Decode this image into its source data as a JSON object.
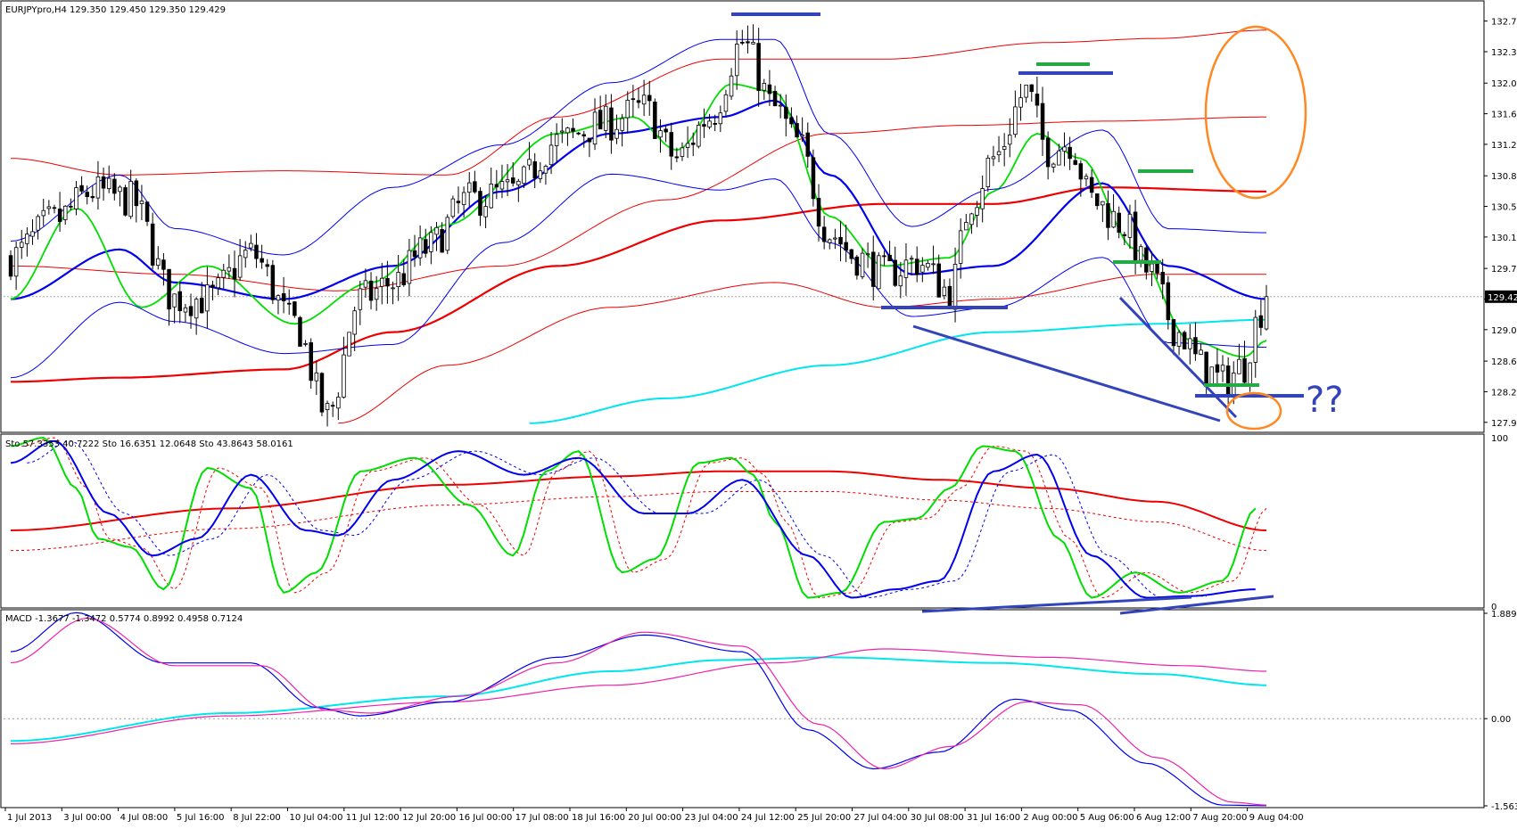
{
  "window": {
    "header_price": "EURJPYpro,H4  129.350 129.450 129.350 129.429",
    "header_sto": "Sto 57.3353 40.7222   Sto 16.6351 12.0648   Sto 43.8643 58.0161",
    "header_macd": "MACD -1.3677 -1.3472 0.5774 0.8992 0.4958 0.7124",
    "current_price_label": "129.429",
    "annotation_text": "??"
  },
  "colors": {
    "background": "#ffffff",
    "grid": "#c0c0c0",
    "bull_candle": "#ffffff",
    "bear_candle": "#000000",
    "green_line": "#00dd00",
    "blue_line": "#0000ee",
    "red_line": "#ee0000",
    "cyan_line": "#00e5ee",
    "magenta_line": "#ee22aa",
    "annotation_blue": "#3344bb",
    "annotation_green": "#22aa44",
    "annotation_orange": "#ff8822"
  },
  "chart_data": [
    {
      "type": "candlestick",
      "symbol": "EURJPYpro",
      "timeframe": "H4",
      "ylim": [
        127.8,
        132.95
      ],
      "y_ticks": [
        "132.760",
        "132.390",
        "132.010",
        "131.640",
        "131.270",
        "130.890",
        "130.520",
        "130.150",
        "129.770",
        "129.400",
        "129.030",
        "128.650",
        "128.280",
        "127.910"
      ],
      "x_ticks": [
        "1 Jul 2013",
        "3 Jul 00:00",
        "4 Jul 08:00",
        "5 Jul 16:00",
        "8 Jul 22:00",
        "10 Jul 04:00",
        "11 Jul 12:00",
        "12 Jul 20:00",
        "16 Jul 00:00",
        "17 Jul 08:00",
        "18 Jul 16:00",
        "20 Jul 00:00",
        "23 Jul 04:00",
        "24 Jul 12:00",
        "25 Jul 20:00",
        "27 Jul 04:00",
        "30 Jul 08:00",
        "31 Jul 16:00",
        "2 Aug 00:00",
        "5 Aug 06:00",
        "6 Aug 12:00",
        "7 Aug 20:00",
        "9 Aug 04:00"
      ],
      "current_price": 129.429,
      "close_path": [
        [
          0,
          129.9
        ],
        [
          8,
          130.35
        ],
        [
          15,
          130.7
        ],
        [
          22,
          130.6
        ],
        [
          30,
          129.4
        ],
        [
          36,
          129.4
        ],
        [
          44,
          129.95
        ],
        [
          52,
          129.1
        ],
        [
          58,
          128.0
        ],
        [
          64,
          129.4
        ],
        [
          70,
          129.6
        ],
        [
          76,
          130.0
        ],
        [
          84,
          130.6
        ],
        [
          92,
          130.7
        ],
        [
          100,
          131.3
        ],
        [
          108,
          131.5
        ],
        [
          116,
          131.7
        ],
        [
          122,
          131.1
        ],
        [
          128,
          131.6
        ],
        [
          134,
          132.5
        ],
        [
          140,
          131.7
        ],
        [
          144,
          131.3
        ],
        [
          150,
          130.2
        ],
        [
          155,
          129.9
        ],
        [
          160,
          129.7
        ],
        [
          166,
          129.85
        ],
        [
          172,
          129.5
        ],
        [
          176,
          130.6
        ],
        [
          180,
          131.1
        ],
        [
          186,
          131.9
        ],
        [
          190,
          131.2
        ],
        [
          194,
          131.3
        ],
        [
          198,
          130.6
        ],
        [
          204,
          130.3
        ],
        [
          208,
          129.75
        ],
        [
          214,
          129.0
        ],
        [
          218,
          128.6
        ],
        [
          222,
          128.4
        ],
        [
          226,
          128.6
        ],
        [
          228,
          129.1
        ],
        [
          230,
          129.429
        ]
      ],
      "series": [
        {
          "name": "Bollinger upper (red)",
          "values": [
            [
              0,
              131.1
            ],
            [
              20,
              130.9
            ],
            [
              50,
              130.95
            ],
            [
              80,
              130.9
            ],
            [
              100,
              131.6
            ],
            [
              130,
              132.3
            ],
            [
              160,
              132.3
            ],
            [
              190,
              132.5
            ],
            [
              210,
              132.55
            ],
            [
              230,
              132.65
            ]
          ]
        },
        {
          "name": "Bollinger middle (red)",
          "values": [
            [
              0,
              129.8
            ],
            [
              30,
              129.7
            ],
            [
              60,
              129.5
            ],
            [
              90,
              129.8
            ],
            [
              120,
              130.6
            ],
            [
              150,
              131.4
            ],
            [
              175,
              131.5
            ],
            [
              200,
              131.55
            ],
            [
              230,
              131.6
            ]
          ]
        },
        {
          "name": "Bollinger lower (red)",
          "values": [
            [
              60,
              127.9
            ],
            [
              80,
              128.6
            ],
            [
              110,
              129.3
            ],
            [
              140,
              129.6
            ],
            [
              160,
              129.3
            ],
            [
              180,
              129.4
            ],
            [
              210,
              129.7
            ],
            [
              230,
              129.7
            ]
          ]
        },
        {
          "name": "MA thick (red)",
          "values": [
            [
              0,
              128.4
            ],
            [
              20,
              128.45
            ],
            [
              50,
              128.55
            ],
            [
              70,
              129.0
            ],
            [
              100,
              129.8
            ],
            [
              130,
              130.35
            ],
            [
              160,
              130.55
            ],
            [
              180,
              130.55
            ],
            [
              200,
              130.75
            ],
            [
              230,
              130.7
            ]
          ]
        },
        {
          "name": "MA thick (blue)",
          "values": [
            [
              0,
              129.4
            ],
            [
              20,
              130.0
            ],
            [
              30,
              129.6
            ],
            [
              50,
              129.4
            ],
            [
              70,
              129.8
            ],
            [
              90,
              130.7
            ],
            [
              110,
              131.4
            ],
            [
              130,
              131.6
            ],
            [
              140,
              131.8
            ],
            [
              150,
              130.9
            ],
            [
              165,
              129.7
            ],
            [
              180,
              129.8
            ],
            [
              200,
              130.8
            ],
            [
              212,
              129.8
            ],
            [
              230,
              129.4
            ]
          ]
        },
        {
          "name": "MA (green)",
          "values": [
            [
              0,
              129.4
            ],
            [
              12,
              130.5
            ],
            [
              24,
              129.3
            ],
            [
              36,
              129.8
            ],
            [
              52,
              129.1
            ],
            [
              66,
              129.6
            ],
            [
              80,
              130.3
            ],
            [
              100,
              131.4
            ],
            [
              114,
              131.6
            ],
            [
              122,
              131.2
            ],
            [
              132,
              132.0
            ],
            [
              140,
              131.9
            ],
            [
              150,
              130.4
            ],
            [
              160,
              129.8
            ],
            [
              172,
              129.9
            ],
            [
              180,
              130.7
            ],
            [
              188,
              131.4
            ],
            [
              196,
              131.1
            ],
            [
              206,
              130.0
            ],
            [
              216,
              128.9
            ],
            [
              226,
              128.7
            ],
            [
              230,
              128.9
            ]
          ]
        },
        {
          "name": "MA (cyan)",
          "values": [
            [
              95,
              127.9
            ],
            [
              120,
              128.2
            ],
            [
              150,
              128.6
            ],
            [
              180,
              129.0
            ],
            [
              210,
              129.1
            ],
            [
              230,
              129.15
            ]
          ]
        }
      ]
    },
    {
      "type": "line",
      "name": "Stochastic",
      "ylim": [
        0,
        100
      ],
      "y_ticks": [
        "100",
        "0"
      ],
      "series": [
        {
          "name": "Sto fast (green)",
          "values": [
            [
              0,
              95
            ],
            [
              6,
              100
            ],
            [
              12,
              70
            ],
            [
              16,
              40
            ],
            [
              22,
              35
            ],
            [
              28,
              10
            ],
            [
              36,
              82
            ],
            [
              44,
              70
            ],
            [
              50,
              8
            ],
            [
              56,
              20
            ],
            [
              64,
              80
            ],
            [
              74,
              88
            ],
            [
              84,
              60
            ],
            [
              92,
              30
            ],
            [
              98,
              80
            ],
            [
              104,
              92
            ],
            [
              112,
              20
            ],
            [
              118,
              28
            ],
            [
              126,
              85
            ],
            [
              132,
              88
            ],
            [
              136,
              78
            ],
            [
              140,
              50
            ],
            [
              146,
              5
            ],
            [
              152,
              8
            ],
            [
              160,
              50
            ],
            [
              166,
              52
            ],
            [
              172,
              70
            ],
            [
              178,
              95
            ],
            [
              184,
              92
            ],
            [
              192,
              40
            ],
            [
              198,
              5
            ],
            [
              206,
              20
            ],
            [
              214,
              8
            ],
            [
              222,
              15
            ],
            [
              228,
              58
            ]
          ]
        },
        {
          "name": "Sto slow (blue)",
          "values": [
            [
              0,
              85
            ],
            [
              8,
              98
            ],
            [
              18,
              55
            ],
            [
              26,
              30
            ],
            [
              34,
              40
            ],
            [
              44,
              78
            ],
            [
              54,
              45
            ],
            [
              60,
              42
            ],
            [
              70,
              75
            ],
            [
              82,
              92
            ],
            [
              94,
              78
            ],
            [
              104,
              88
            ],
            [
              116,
              55
            ],
            [
              124,
              55
            ],
            [
              134,
              75
            ],
            [
              146,
              30
            ],
            [
              154,
              5
            ],
            [
              162,
              10
            ],
            [
              170,
              15
            ],
            [
              180,
              80
            ],
            [
              188,
              90
            ],
            [
              198,
              30
            ],
            [
              208,
              5
            ],
            [
              216,
              6
            ],
            [
              228,
              10
            ]
          ]
        },
        {
          "name": "Sto long (red)",
          "values": [
            [
              0,
              45
            ],
            [
              40,
              58
            ],
            [
              80,
              72
            ],
            [
              110,
              77
            ],
            [
              130,
              80
            ],
            [
              150,
              80
            ],
            [
              170,
              75
            ],
            [
              190,
              70
            ],
            [
              210,
              62
            ],
            [
              230,
              45
            ]
          ]
        }
      ]
    },
    {
      "type": "line",
      "name": "MACD",
      "ylim": [
        -1.5633,
        1.8897
      ],
      "y_ticks": [
        "1.8897",
        "0.00",
        "-1.5633"
      ],
      "series": [
        {
          "name": "MACD (blue)",
          "values": [
            [
              0,
              1.2
            ],
            [
              12,
              1.9
            ],
            [
              28,
              1.0
            ],
            [
              44,
              1.0
            ],
            [
              56,
              0.2
            ],
            [
              64,
              0.05
            ],
            [
              80,
              0.3
            ],
            [
              100,
              1.1
            ],
            [
              116,
              1.5
            ],
            [
              134,
              1.2
            ],
            [
              146,
              -0.2
            ],
            [
              158,
              -0.9
            ],
            [
              170,
              -0.6
            ],
            [
              184,
              0.35
            ],
            [
              194,
              0.15
            ],
            [
              208,
              -0.8
            ],
            [
              222,
              -1.55
            ],
            [
              230,
              -1.56
            ]
          ]
        },
        {
          "name": "Signal (magenta)",
          "values": [
            [
              0,
              1.0
            ],
            [
              14,
              1.8
            ],
            [
              30,
              0.95
            ],
            [
              46,
              0.95
            ],
            [
              58,
              0.15
            ],
            [
              66,
              0.1
            ],
            [
              82,
              0.4
            ],
            [
              100,
              1.0
            ],
            [
              116,
              1.55
            ],
            [
              134,
              1.3
            ],
            [
              148,
              -0.1
            ],
            [
              160,
              -0.9
            ],
            [
              172,
              -0.5
            ],
            [
              186,
              0.3
            ],
            [
              196,
              0.25
            ],
            [
              210,
              -0.7
            ],
            [
              224,
              -1.5
            ],
            [
              230,
              -1.55
            ]
          ]
        },
        {
          "name": "MA (cyan)",
          "values": [
            [
              0,
              -0.4
            ],
            [
              40,
              0.1
            ],
            [
              80,
              0.4
            ],
            [
              110,
              0.85
            ],
            [
              130,
              1.05
            ],
            [
              150,
              1.1
            ],
            [
              180,
              1.0
            ],
            [
              210,
              0.8
            ],
            [
              230,
              0.6
            ]
          ]
        },
        {
          "name": "Long (pink)",
          "values": [
            [
              0,
              -0.45
            ],
            [
              40,
              0.05
            ],
            [
              80,
              0.3
            ],
            [
              110,
              0.6
            ],
            [
              140,
              1.0
            ],
            [
              160,
              1.25
            ],
            [
              190,
              1.1
            ],
            [
              215,
              0.95
            ],
            [
              230,
              0.85
            ]
          ]
        }
      ]
    }
  ]
}
